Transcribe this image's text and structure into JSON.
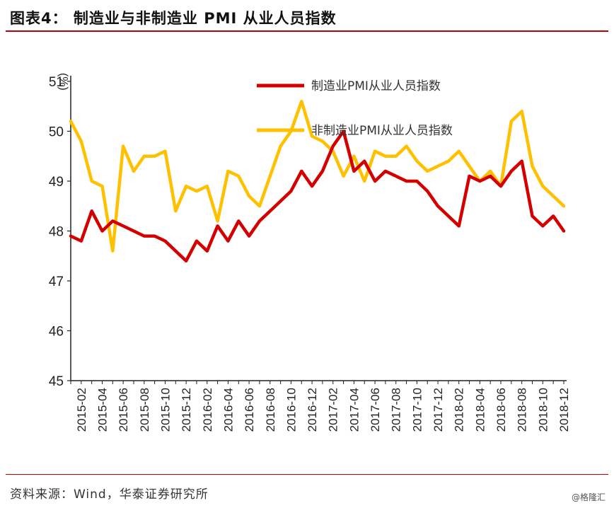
{
  "title": "图表4：   制造业与非制造业 PMI 从业人员指数",
  "source": "资料来源：Wind，华泰证券研究所",
  "watermark": "@格隆汇",
  "colors": {
    "manufacturing": "#d40000",
    "non_manufacturing": "#ffc000",
    "rule": "#c00000"
  },
  "chart_data": {
    "type": "line",
    "unit": "(%)",
    "ylim": [
      45,
      51
    ],
    "yticks": [
      45,
      46,
      47,
      48,
      49,
      50,
      51
    ],
    "x": [
      "2015-01",
      "2015-02",
      "2015-03",
      "2015-04",
      "2015-05",
      "2015-06",
      "2015-07",
      "2015-08",
      "2015-09",
      "2015-10",
      "2015-11",
      "2015-12",
      "2016-01",
      "2016-02",
      "2016-03",
      "2016-04",
      "2016-05",
      "2016-06",
      "2016-07",
      "2016-08",
      "2016-09",
      "2016-10",
      "2016-11",
      "2016-12",
      "2017-01",
      "2017-02",
      "2017-03",
      "2017-04",
      "2017-05",
      "2017-06",
      "2017-07",
      "2017-08",
      "2017-09",
      "2017-10",
      "2017-11",
      "2017-12",
      "2018-01",
      "2018-02",
      "2018-03",
      "2018-04",
      "2018-05",
      "2018-06",
      "2018-07",
      "2018-08",
      "2018-09",
      "2018-10",
      "2018-11",
      "2018-12"
    ],
    "xtick_labels": [
      "2015-02",
      "2015-04",
      "2015-06",
      "2015-08",
      "2015-10",
      "2015-12",
      "2016-02",
      "2016-04",
      "2016-06",
      "2016-08",
      "2016-10",
      "2016-12",
      "2017-02",
      "2017-04",
      "2017-06",
      "2017-08",
      "2017-10",
      "2017-12",
      "2018-02",
      "2018-04",
      "2018-06",
      "2018-08",
      "2018-10",
      "2018-12"
    ],
    "legend_position": "top-right",
    "series": [
      {
        "name": "制造业PMI从业人员指数",
        "color": "#d40000",
        "values": [
          47.9,
          47.8,
          48.4,
          48.0,
          48.2,
          48.1,
          48.0,
          47.9,
          47.9,
          47.8,
          47.6,
          47.4,
          47.8,
          47.6,
          48.1,
          47.8,
          48.2,
          47.9,
          48.2,
          48.4,
          48.6,
          48.8,
          49.2,
          48.9,
          49.2,
          49.7,
          50.0,
          49.2,
          49.4,
          49.0,
          49.2,
          49.1,
          49.0,
          49.0,
          48.8,
          48.5,
          48.3,
          48.1,
          49.1,
          49.0,
          49.1,
          48.9,
          49.2,
          49.4,
          48.3,
          48.1,
          48.3,
          48.0
        ]
      },
      {
        "name": "非制造业PMI从业人员指数",
        "color": "#ffc000",
        "values": [
          50.2,
          49.8,
          49.0,
          48.9,
          47.6,
          49.7,
          49.2,
          49.5,
          49.5,
          49.6,
          48.4,
          48.9,
          48.8,
          48.9,
          48.2,
          49.2,
          49.1,
          48.7,
          48.5,
          49.1,
          49.7,
          50.0,
          50.6,
          49.9,
          49.8,
          49.6,
          49.1,
          49.5,
          49.0,
          49.6,
          49.5,
          49.5,
          49.7,
          49.4,
          49.2,
          49.3,
          49.4,
          49.6,
          49.3,
          49.0,
          49.2,
          48.9,
          50.2,
          50.4,
          49.3,
          48.9,
          48.7,
          48.5
        ]
      }
    ]
  }
}
